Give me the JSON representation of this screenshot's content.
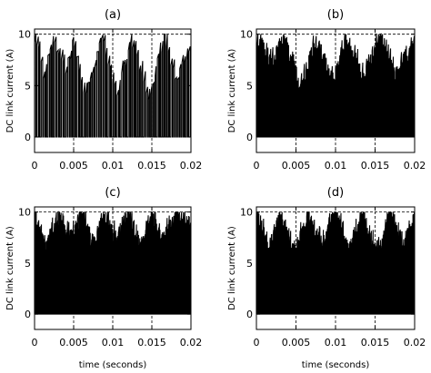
{
  "chart_data": [
    {
      "type": "line",
      "title": "(a)",
      "xlabel": "",
      "ylabel": "DC link current (A)",
      "xlim": [
        0,
        0.02
      ],
      "ylim": [
        -1.5,
        10.5
      ],
      "xticks": [
        "0",
        "0.005",
        "0.01",
        "0.015",
        "0.02"
      ],
      "yticks": [
        "0",
        "5",
        "10"
      ],
      "grid": "dashed lines at x = 0.005, 0.01, 0.015 and y = 10",
      "series": [
        {
          "pulse_count": 70,
          "levels": [
            0,
            10
          ],
          "peak_envelope": [
            [
              0,
              9.5
            ],
            [
              0.0012,
              6.0
            ],
            [
              0.0025,
              9.5
            ],
            [
              0.004,
              6.5
            ],
            [
              0.005,
              9.5
            ],
            [
              0.0065,
              4.0
            ],
            [
              0.0085,
              9.5
            ],
            [
              0.0105,
              4.0
            ],
            [
              0.0125,
              9.5
            ],
            [
              0.0145,
              4.0
            ],
            [
              0.0165,
              9.5
            ],
            [
              0.018,
              6.0
            ],
            [
              0.02,
              8.5
            ]
          ]
        }
      ]
    },
    {
      "type": "line",
      "title": "(b)",
      "xlabel": "",
      "ylabel": "DC link current (A)",
      "xlim": [
        0,
        0.02
      ],
      "ylim": [
        -1.5,
        10.5
      ],
      "xticks": [
        "0",
        "0.005",
        "0.01",
        "0.015",
        "0.02"
      ],
      "yticks": [
        "0",
        "5",
        "10"
      ],
      "grid": "dashed lines at x = 0.005, 0.01, 0.015 and y = 10",
      "series": [
        {
          "pulse_count": 160,
          "levels": [
            0,
            10
          ],
          "peak_envelope": [
            [
              0,
              9.5
            ],
            [
              0.0018,
              7.0
            ],
            [
              0.0035,
              9.5
            ],
            [
              0.0055,
              4.5
            ],
            [
              0.0075,
              9.5
            ],
            [
              0.0095,
              5.0
            ],
            [
              0.0115,
              9.5
            ],
            [
              0.0135,
              5.5
            ],
            [
              0.0155,
              9.5
            ],
            [
              0.0175,
              6.0
            ],
            [
              0.02,
              9.0
            ]
          ]
        }
      ]
    },
    {
      "type": "line",
      "title": "(c)",
      "xlabel": "time (seconds)",
      "ylabel": "DC link current (A)",
      "xlim": [
        0,
        0.02
      ],
      "ylim": [
        -1.5,
        10.5
      ],
      "xticks": [
        "0",
        "0.005",
        "0.01",
        "0.015",
        "0.02"
      ],
      "yticks": [
        "0",
        "5",
        "10"
      ],
      "grid": "dashed lines at x = 0.005, 0.01, 0.015 and y = 10",
      "series": [
        {
          "pulse_count": 240,
          "levels": [
            0,
            10
          ],
          "peak_envelope": [
            [
              0,
              9.5
            ],
            [
              0.0015,
              6.5
            ],
            [
              0.003,
              9.5
            ],
            [
              0.0045,
              7.0
            ],
            [
              0.006,
              9.8
            ],
            [
              0.0075,
              6.5
            ],
            [
              0.009,
              9.5
            ],
            [
              0.0105,
              7.0
            ],
            [
              0.012,
              9.5
            ],
            [
              0.0135,
              6.5
            ],
            [
              0.015,
              9.5
            ],
            [
              0.0165,
              7.0
            ],
            [
              0.018,
              9.5
            ],
            [
              0.02,
              8.0
            ]
          ]
        }
      ]
    },
    {
      "type": "line",
      "title": "(d)",
      "xlabel": "time (seconds)",
      "ylabel": "DC link current (A)",
      "xlim": [
        0,
        0.02
      ],
      "ylim": [
        -1.5,
        10.5
      ],
      "xticks": [
        "0",
        "0.005",
        "0.01",
        "0.015",
        "0.02"
      ],
      "yticks": [
        "0",
        "5",
        "10"
      ],
      "grid": "dashed lines at x = 0.005, 0.01, 0.015 and y = 10",
      "series": [
        {
          "pulse_count": 280,
          "levels": [
            0,
            10
          ],
          "peak_envelope": [
            [
              0,
              9.5
            ],
            [
              0.0015,
              6.0
            ],
            [
              0.003,
              9.5
            ],
            [
              0.0048,
              5.5
            ],
            [
              0.0065,
              9.5
            ],
            [
              0.0082,
              6.5
            ],
            [
              0.01,
              9.5
            ],
            [
              0.0118,
              6.0
            ],
            [
              0.0135,
              9.5
            ],
            [
              0.0152,
              5.5
            ],
            [
              0.017,
              9.5
            ],
            [
              0.0185,
              6.0
            ],
            [
              0.02,
              9.5
            ]
          ]
        }
      ]
    }
  ]
}
